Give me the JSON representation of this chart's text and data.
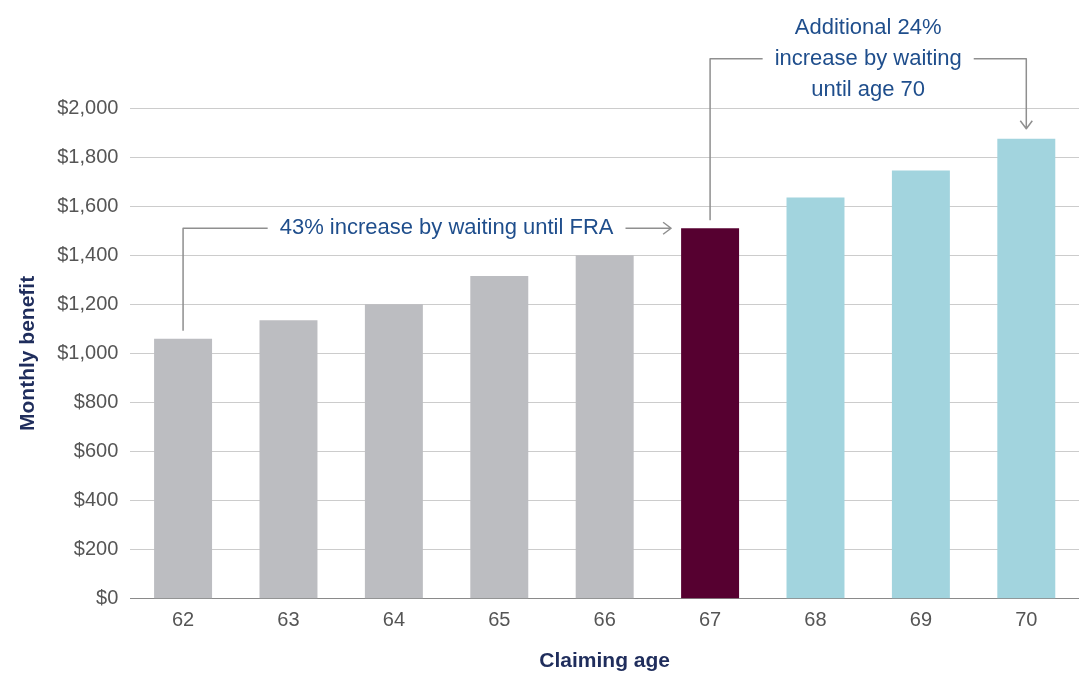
{
  "chart_data": {
    "type": "bar",
    "xlabel": "Claiming age",
    "ylabel": "Monthly benefit",
    "categories": [
      "62",
      "63",
      "64",
      "65",
      "66",
      "67",
      "68",
      "69",
      "70"
    ],
    "values": [
      1060,
      1135,
      1200,
      1315,
      1400,
      1510,
      1635,
      1745,
      1875
    ],
    "colors": [
      "#bcbdc1",
      "#bcbdc1",
      "#bcbdc1",
      "#bcbdc1",
      "#bcbdc1",
      "#560030",
      "#a2d4de",
      "#a2d4de",
      "#a2d4de"
    ],
    "ylim": [
      0,
      2000
    ],
    "yticks": [
      {
        "value": 0,
        "label": "$0"
      },
      {
        "value": 200,
        "label": "$200"
      },
      {
        "value": 400,
        "label": "$400"
      },
      {
        "value": 600,
        "label": "$600"
      },
      {
        "value": 800,
        "label": "$800"
      },
      {
        "value": 1000,
        "label": "$1,000"
      },
      {
        "value": 1200,
        "label": "$1,200"
      },
      {
        "value": 1400,
        "label": "$1,400"
      },
      {
        "value": 1600,
        "label": "$1,600"
      },
      {
        "value": 1800,
        "label": "$1,800"
      },
      {
        "value": 2000,
        "label": "$2,000"
      }
    ],
    "grid": "y",
    "legend": false,
    "annotations": [
      "43% increase by waiting until FRA",
      "Additional 24% increase by waiting until age 70"
    ]
  }
}
